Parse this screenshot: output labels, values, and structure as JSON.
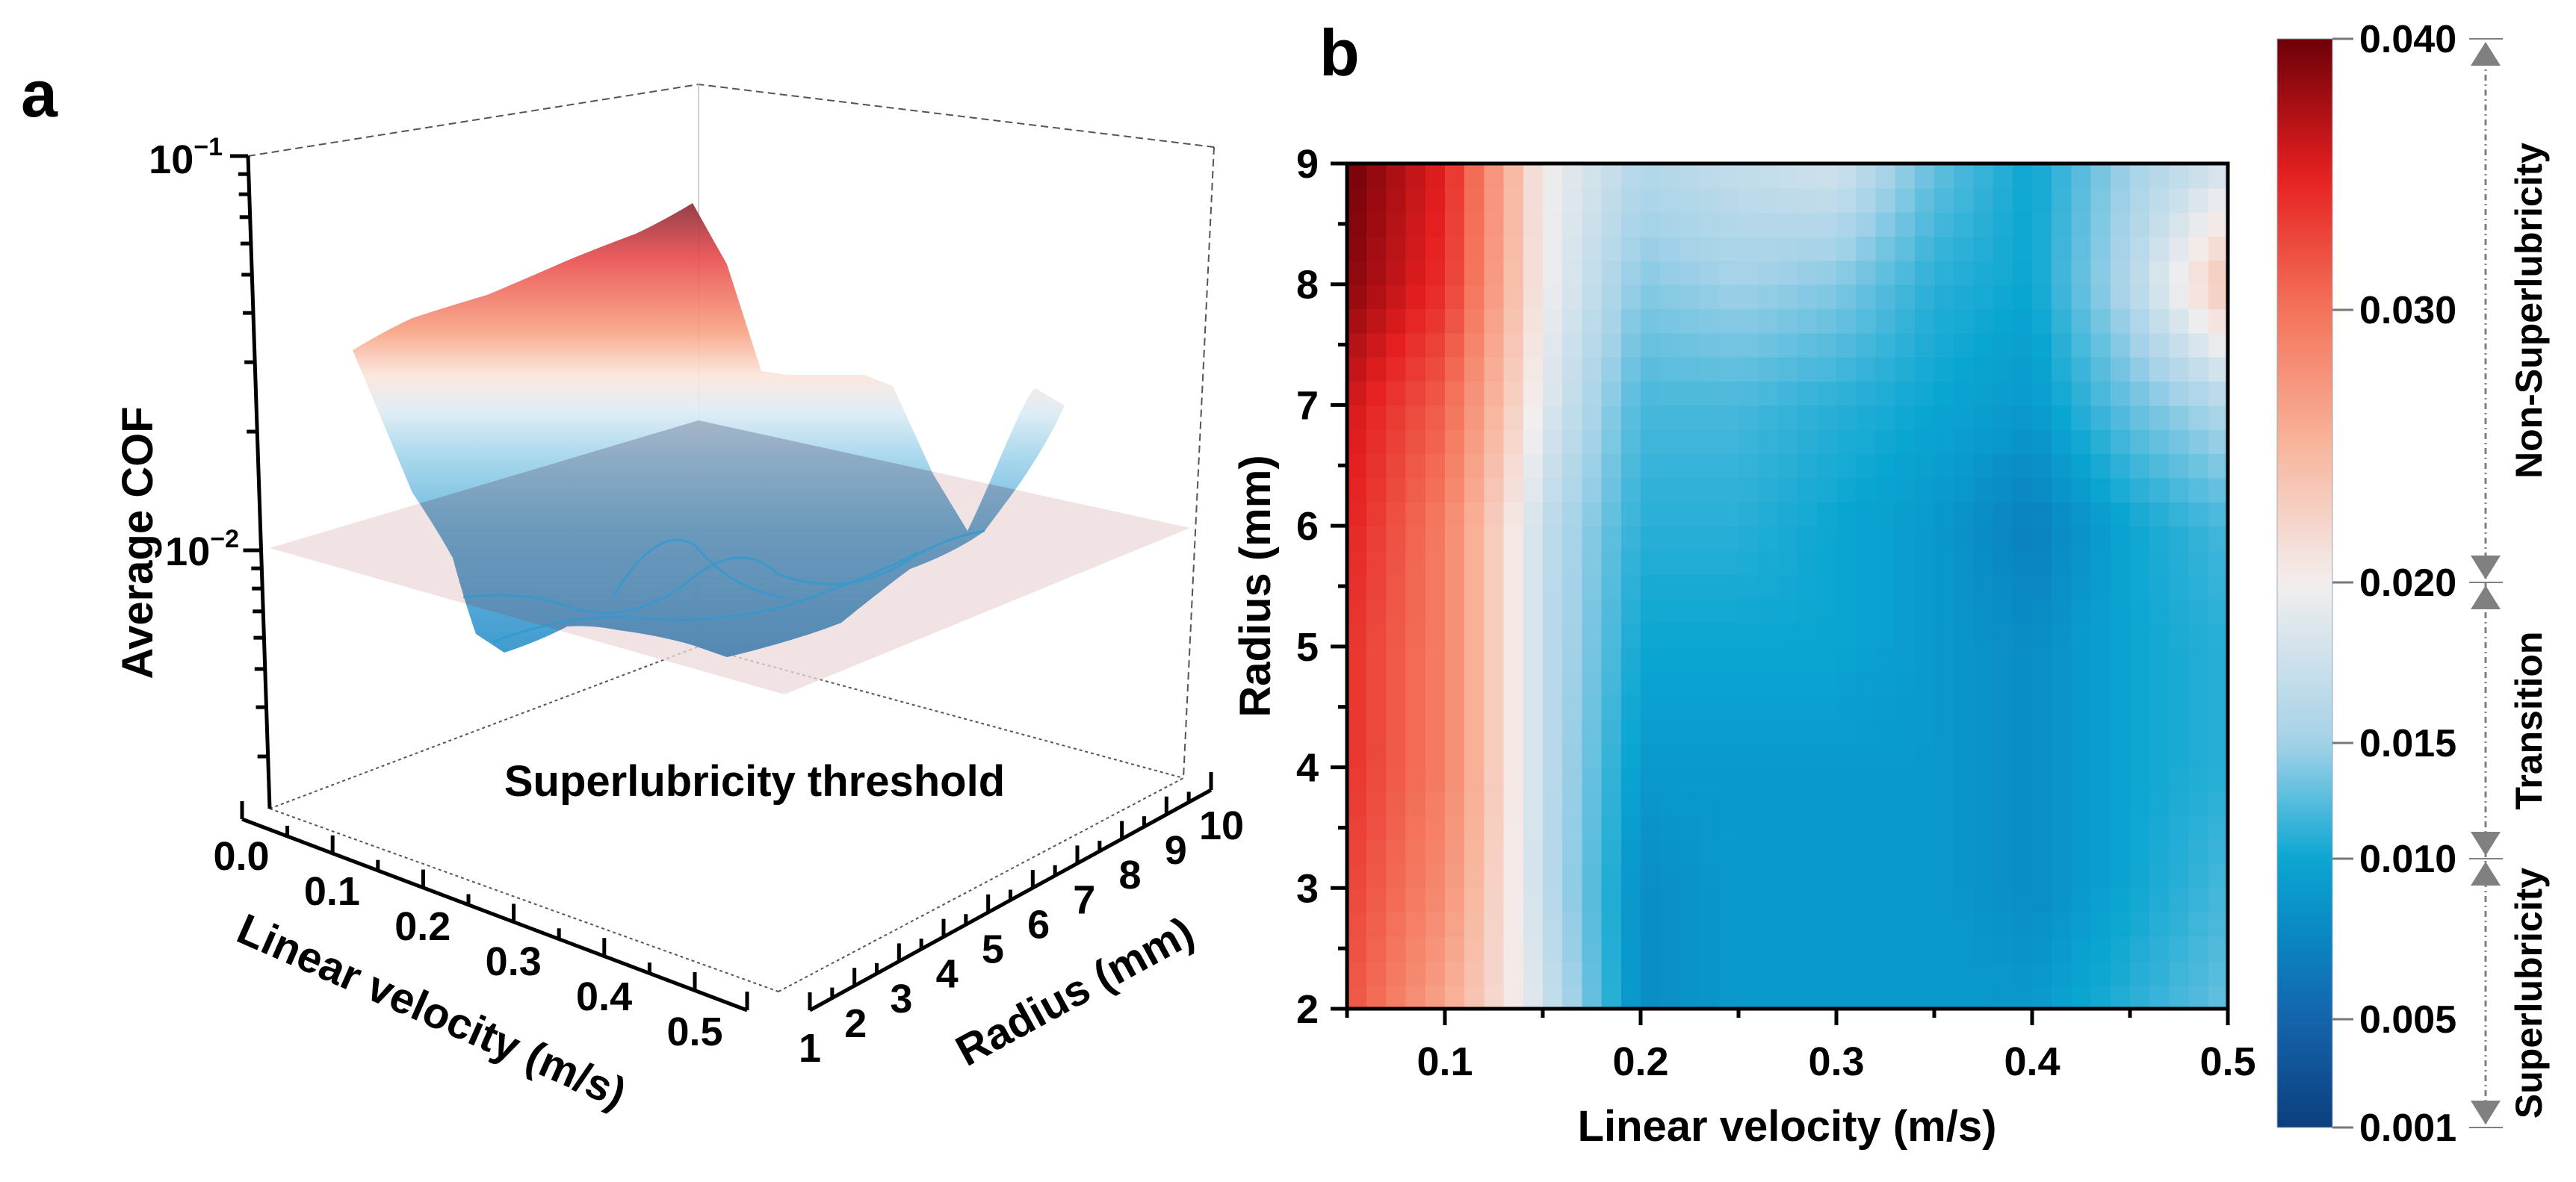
{
  "figure": {
    "panel_a_label": "a",
    "panel_b_label": "b"
  },
  "chart_data": [
    {
      "type": "surface3d",
      "panel": "a",
      "zlabel": "Average COF",
      "xlabel": "Linear velocity (m/s)",
      "ylabel": "Radius (mm)",
      "zscale": "log",
      "z_ticks": [
        {
          "base": "10",
          "exp": "−1",
          "value": 0.1
        },
        {
          "base": "10",
          "exp": "−2",
          "value": 0.01
        }
      ],
      "x_ticks": [
        "0.0",
        "0.1",
        "0.2",
        "0.3",
        "0.4",
        "0.5"
      ],
      "y_ticks": [
        "1",
        "2",
        "3",
        "4",
        "5",
        "6",
        "7",
        "8",
        "9",
        "10"
      ],
      "xlim": [
        0.0,
        0.5
      ],
      "ylim": [
        1,
        10
      ],
      "threshold": {
        "value": 0.01,
        "label": "Superlubricity threshold"
      },
      "colors": {
        "high": "#8a2a35",
        "mid": "#f3eceb",
        "low": "#2b8fc9",
        "plane": "#ecdada"
      }
    },
    {
      "type": "heatmap",
      "panel": "b",
      "xlabel": "Linear velocity (m/s)",
      "ylabel": "Radius (mm)",
      "xlim": [
        0.05,
        0.5
      ],
      "ylim": [
        2,
        9
      ],
      "x_ticks": [
        "0.1",
        "0.2",
        "0.3",
        "0.4",
        "0.5"
      ],
      "y_ticks": [
        "2",
        "3",
        "4",
        "5",
        "6",
        "7",
        "8",
        "9"
      ],
      "x": [
        0.05,
        0.1,
        0.15,
        0.2,
        0.25,
        0.3,
        0.35,
        0.4,
        0.45,
        0.5
      ],
      "y": [
        2,
        3,
        4,
        5,
        6,
        7,
        8,
        9
      ],
      "values": [
        [
          0.032,
          0.026,
          0.018,
          0.008,
          0.009,
          0.009,
          0.009,
          0.009,
          0.011,
          0.013
        ],
        [
          0.033,
          0.028,
          0.017,
          0.008,
          0.009,
          0.009,
          0.009,
          0.008,
          0.01,
          0.012
        ],
        [
          0.034,
          0.029,
          0.017,
          0.009,
          0.009,
          0.009,
          0.009,
          0.008,
          0.01,
          0.011
        ],
        [
          0.034,
          0.029,
          0.017,
          0.01,
          0.01,
          0.01,
          0.009,
          0.008,
          0.01,
          0.011
        ],
        [
          0.035,
          0.029,
          0.017,
          0.011,
          0.011,
          0.01,
          0.009,
          0.007,
          0.01,
          0.012
        ],
        [
          0.036,
          0.031,
          0.019,
          0.012,
          0.012,
          0.011,
          0.01,
          0.009,
          0.013,
          0.016
        ],
        [
          0.039,
          0.034,
          0.02,
          0.014,
          0.015,
          0.014,
          0.011,
          0.01,
          0.016,
          0.024
        ],
        [
          0.04,
          0.035,
          0.02,
          0.016,
          0.017,
          0.018,
          0.013,
          0.01,
          0.015,
          0.018
        ]
      ],
      "colorbar": {
        "ticks": [
          "0.040",
          "0.030",
          "0.020",
          "0.015",
          "0.010",
          "0.005",
          "0.001"
        ],
        "tick_values": [
          0.04,
          0.03,
          0.02,
          0.015,
          0.01,
          0.005,
          0.001
        ],
        "highlight_tick": "0.010",
        "highlight_color": "#ff0000",
        "range": [
          0.001,
          0.04
        ],
        "stops": [
          {
            "value": 0.001,
            "color": "#0b3f7e"
          },
          {
            "value": 0.005,
            "color": "#1564ab"
          },
          {
            "value": 0.0075,
            "color": "#0a86c2"
          },
          {
            "value": 0.01,
            "color": "#0aa6d2"
          },
          {
            "value": 0.015,
            "color": "#a4d2e8"
          },
          {
            "value": 0.02,
            "color": "#f3eeee"
          },
          {
            "value": 0.025,
            "color": "#f8b59c"
          },
          {
            "value": 0.03,
            "color": "#f4735a"
          },
          {
            "value": 0.035,
            "color": "#e51f20"
          },
          {
            "value": 0.04,
            "color": "#6e0008"
          }
        ],
        "regions": [
          {
            "label": "Non-Superlubricity",
            "range": [
              0.02,
              0.04
            ]
          },
          {
            "label": "Transition",
            "range": [
              0.01,
              0.02
            ]
          },
          {
            "label": "Superlubricity",
            "range": [
              0.001,
              0.01
            ]
          }
        ],
        "marker_color": "#808080"
      }
    }
  ]
}
